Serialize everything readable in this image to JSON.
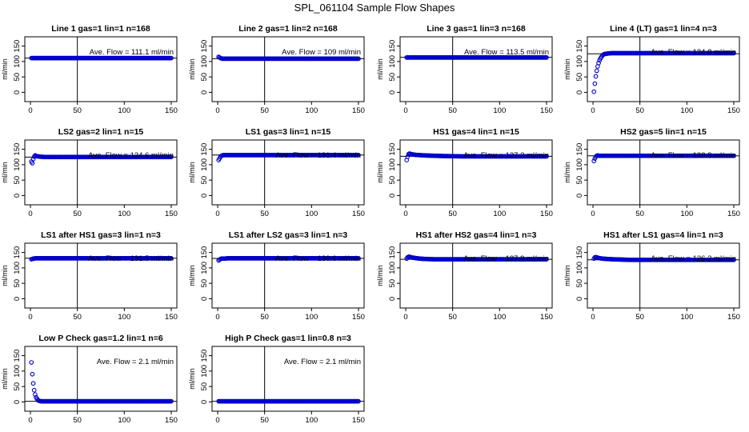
{
  "figure_title": "SPL_061104  Sample Flow Shapes",
  "colors": {
    "points": "#0000cc",
    "axes": "#000000",
    "background": "#ffffff"
  },
  "chart_data": [
    {
      "type": "scatter",
      "title": "Line 1 gas=1 lin=1 n=168",
      "ylabel": "ml/min",
      "annotation": "Ave. Flow = 111.1  ml/min",
      "ave_flow": 111.1,
      "xlim": [
        0,
        150
      ],
      "ylim": [
        0,
        150
      ],
      "xticks": [
        "0",
        "50",
        "100",
        "150"
      ],
      "yticks": [
        "0",
        "50",
        "100",
        "150"
      ],
      "vline_x": 50,
      "hline_y": 111.1,
      "x": [
        1,
        2,
        3,
        4,
        5,
        6,
        8,
        10,
        15,
        20,
        30,
        40,
        60,
        80,
        100,
        120,
        140,
        150
      ],
      "y": [
        111,
        111,
        111,
        111,
        111,
        111,
        111,
        111,
        111,
        111,
        111,
        111,
        111,
        111,
        111,
        111,
        111,
        111
      ]
    },
    {
      "type": "scatter",
      "title": "Line 2 gas=1 lin=2 n=168",
      "ylabel": "ml/min",
      "annotation": "Ave. Flow = 109  ml/min",
      "ave_flow": 109,
      "xlim": [
        0,
        150
      ],
      "ylim": [
        0,
        150
      ],
      "xticks": [
        "0",
        "50",
        "100",
        "150"
      ],
      "yticks": [
        "0",
        "50",
        "100",
        "150"
      ],
      "vline_x": 50,
      "hline_y": 109,
      "x": [
        1,
        2,
        3,
        4,
        5,
        6,
        8,
        10,
        15,
        20,
        30,
        40,
        60,
        80,
        100,
        120,
        140,
        150
      ],
      "y": [
        115,
        113,
        111,
        110,
        109,
        109,
        109,
        109,
        109,
        109,
        109,
        109,
        109,
        109,
        109,
        109,
        109,
        109
      ]
    },
    {
      "type": "scatter",
      "title": "Line 3 gas=1 lin=3 n=168",
      "ylabel": "ml/min",
      "annotation": "Ave. Flow = 113.5  ml/min",
      "ave_flow": 113.5,
      "xlim": [
        0,
        150
      ],
      "ylim": [
        0,
        150
      ],
      "xticks": [
        "0",
        "50",
        "100",
        "150"
      ],
      "yticks": [
        "0",
        "50",
        "100",
        "150"
      ],
      "vline_x": 50,
      "hline_y": 113.5,
      "x": [
        1,
        2,
        3,
        4,
        5,
        6,
        8,
        10,
        15,
        20,
        30,
        40,
        60,
        80,
        100,
        120,
        140,
        150
      ],
      "y": [
        113,
        113,
        113,
        113,
        113,
        113,
        113,
        113,
        113,
        113,
        113,
        113,
        113,
        113,
        113,
        113,
        113,
        113
      ]
    },
    {
      "type": "scatter",
      "title": "Line 4 (LT) gas=1 lin=4 n=3",
      "ylabel": "ml/min",
      "annotation": "Ave. Flow = 124.8  ml/min",
      "ave_flow": 124.8,
      "xlim": [
        0,
        150
      ],
      "ylim": [
        0,
        150
      ],
      "xticks": [
        "0",
        "50",
        "100",
        "150"
      ],
      "yticks": [
        "0",
        "50",
        "100",
        "150"
      ],
      "vline_x": 50,
      "hline_y": 124.8,
      "x": [
        1,
        2,
        3,
        4,
        5,
        6,
        7,
        8,
        9,
        10,
        11,
        12,
        14,
        16,
        20,
        30,
        40,
        60,
        80,
        100,
        120,
        140,
        150
      ],
      "y": [
        2,
        28,
        52,
        70,
        84,
        95,
        104,
        110,
        115,
        119,
        122,
        124,
        125,
        126,
        127,
        127,
        127,
        127,
        127,
        127,
        127,
        127,
        127
      ]
    },
    {
      "type": "scatter",
      "title": "LS2 gas=2 lin=1 n=15",
      "ylabel": "ml/min",
      "annotation": "Ave. Flow = 124.6  ml/min",
      "ave_flow": 124.6,
      "xlim": [
        0,
        150
      ],
      "ylim": [
        0,
        150
      ],
      "xticks": [
        "0",
        "50",
        "100",
        "150"
      ],
      "yticks": [
        "0",
        "50",
        "100",
        "150"
      ],
      "vline_x": 50,
      "hline_y": 124.6,
      "x": [
        1,
        2,
        3,
        4,
        5,
        6,
        8,
        10,
        15,
        20,
        30,
        40,
        60,
        80,
        100,
        120,
        140,
        150
      ],
      "y": [
        110,
        105,
        118,
        126,
        130,
        128,
        127,
        126,
        125,
        125,
        125,
        125,
        125,
        125,
        125,
        125,
        125,
        125
      ]
    },
    {
      "type": "scatter",
      "title": "LS1 gas=3 lin=1 n=15",
      "ylabel": "ml/min",
      "annotation": "Ave. Flow = 131.4  ml/min",
      "ave_flow": 131.4,
      "xlim": [
        0,
        150
      ],
      "ylim": [
        0,
        150
      ],
      "xticks": [
        "0",
        "50",
        "100",
        "150"
      ],
      "yticks": [
        "0",
        "50",
        "100",
        "150"
      ],
      "vline_x": 50,
      "hline_y": 131.4,
      "x": [
        1,
        2,
        3,
        4,
        5,
        6,
        8,
        10,
        15,
        20,
        30,
        40,
        60,
        80,
        100,
        120,
        140,
        150
      ],
      "y": [
        115,
        120,
        126,
        129,
        130,
        131,
        131,
        131,
        131,
        131,
        131,
        131,
        131,
        131,
        131,
        131,
        131,
        131
      ]
    },
    {
      "type": "scatter",
      "title": "HS1 gas=4 lin=1 n=15",
      "ylabel": "ml/min",
      "annotation": "Ave. Flow = 127.3  ml/min",
      "ave_flow": 127.3,
      "xlim": [
        0,
        150
      ],
      "ylim": [
        0,
        150
      ],
      "xticks": [
        "0",
        "50",
        "100",
        "150"
      ],
      "yticks": [
        "0",
        "50",
        "100",
        "150"
      ],
      "vline_x": 50,
      "hline_y": 127.3,
      "x": [
        1,
        2,
        3,
        4,
        5,
        6,
        8,
        10,
        15,
        20,
        30,
        40,
        60,
        80,
        100,
        120,
        140,
        150
      ],
      "y": [
        115,
        126,
        134,
        136,
        135,
        134,
        133,
        132,
        131,
        130,
        129,
        128,
        127,
        127,
        127,
        127,
        127,
        127
      ]
    },
    {
      "type": "scatter",
      "title": "HS2 gas=5 lin=1 n=15",
      "ylabel": "ml/min",
      "annotation": "Ave. Flow = 128.8  ml/min",
      "ave_flow": 128.8,
      "xlim": [
        0,
        150
      ],
      "ylim": [
        0,
        150
      ],
      "xticks": [
        "0",
        "50",
        "100",
        "150"
      ],
      "yticks": [
        "0",
        "50",
        "100",
        "150"
      ],
      "vline_x": 50,
      "hline_y": 128.8,
      "x": [
        1,
        2,
        3,
        4,
        5,
        6,
        8,
        10,
        15,
        20,
        30,
        40,
        60,
        80,
        100,
        120,
        140,
        150
      ],
      "y": [
        112,
        120,
        126,
        129,
        130,
        129,
        129,
        129,
        129,
        129,
        129,
        129,
        129,
        129,
        129,
        129,
        129,
        129
      ]
    },
    {
      "type": "scatter",
      "title": "LS1 after HS1 gas=3 lin=1 n=3",
      "ylabel": "ml/min",
      "annotation": "Ave. Flow = 131.5  ml/min",
      "ave_flow": 131.5,
      "xlim": [
        0,
        150
      ],
      "ylim": [
        0,
        150
      ],
      "xticks": [
        "0",
        "50",
        "100",
        "150"
      ],
      "yticks": [
        "0",
        "50",
        "100",
        "150"
      ],
      "vline_x": 50,
      "hline_y": 131.5,
      "x": [
        1,
        2,
        3,
        4,
        5,
        6,
        8,
        10,
        15,
        20,
        30,
        40,
        60,
        80,
        100,
        120,
        140,
        150
      ],
      "y": [
        128,
        129,
        130,
        130,
        131,
        131,
        131,
        131,
        131,
        131,
        131,
        131,
        131,
        131,
        131,
        131,
        131,
        131
      ]
    },
    {
      "type": "scatter",
      "title": "LS1 after LS2 gas=3 lin=1 n=3",
      "ylabel": "ml/min",
      "annotation": "Ave. Flow = 130.6  ml/min",
      "ave_flow": 130.6,
      "xlim": [
        0,
        150
      ],
      "ylim": [
        0,
        150
      ],
      "xticks": [
        "0",
        "50",
        "100",
        "150"
      ],
      "yticks": [
        "0",
        "50",
        "100",
        "150"
      ],
      "vline_x": 50,
      "hline_y": 130.6,
      "x": [
        1,
        2,
        3,
        4,
        5,
        6,
        8,
        10,
        15,
        20,
        30,
        40,
        60,
        80,
        100,
        120,
        140,
        150
      ],
      "y": [
        124,
        127,
        129,
        130,
        130,
        130,
        130,
        131,
        131,
        131,
        131,
        131,
        131,
        131,
        131,
        131,
        131,
        131
      ]
    },
    {
      "type": "scatter",
      "title": "HS1 after HS2 gas=4 lin=1 n=3",
      "ylabel": "ml/min",
      "annotation": "Ave. Flow = 127.9  ml/min",
      "ave_flow": 127.9,
      "xlim": [
        0,
        150
      ],
      "ylim": [
        0,
        150
      ],
      "xticks": [
        "0",
        "50",
        "100",
        "150"
      ],
      "yticks": [
        "0",
        "50",
        "100",
        "150"
      ],
      "vline_x": 50,
      "hline_y": 127.9,
      "x": [
        1,
        2,
        3,
        4,
        5,
        6,
        8,
        10,
        15,
        20,
        30,
        40,
        60,
        80,
        100,
        120,
        140,
        150
      ],
      "y": [
        130,
        134,
        136,
        136,
        135,
        134,
        133,
        132,
        130,
        129,
        128,
        128,
        128,
        128,
        128,
        128,
        128,
        128
      ]
    },
    {
      "type": "scatter",
      "title": "HS1 after LS1 gas=4 lin=1 n=3",
      "ylabel": "ml/min",
      "annotation": "Ave. Flow = 126.2  ml/min",
      "ave_flow": 126.2,
      "xlim": [
        0,
        150
      ],
      "ylim": [
        0,
        150
      ],
      "xticks": [
        "0",
        "50",
        "100",
        "150"
      ],
      "yticks": [
        "0",
        "50",
        "100",
        "150"
      ],
      "vline_x": 50,
      "hline_y": 126.2,
      "x": [
        1,
        2,
        3,
        4,
        5,
        6,
        8,
        10,
        15,
        20,
        30,
        40,
        60,
        80,
        100,
        120,
        140,
        150
      ],
      "y": [
        130,
        134,
        135,
        134,
        133,
        132,
        131,
        130,
        129,
        128,
        127,
        126,
        126,
        126,
        126,
        126,
        126,
        126
      ]
    },
    {
      "type": "scatter",
      "title": "Low P Check gas=1.2 lin=1 n=6",
      "ylabel": "ml/min",
      "annotation": "Ave. Flow =  2.1  ml/min",
      "ave_flow": 2.1,
      "xlim": [
        0,
        150
      ],
      "ylim": [
        0,
        150
      ],
      "xticks": [
        "0",
        "50",
        "100",
        "150"
      ],
      "yticks": [
        "0",
        "50",
        "100",
        "150"
      ],
      "vline_x": 50,
      "hline_y": 2.1,
      "x": [
        1,
        2,
        3,
        4,
        5,
        6,
        7,
        8,
        9,
        10,
        12,
        14,
        16,
        20,
        30,
        40,
        60,
        80,
        100,
        120,
        140,
        150
      ],
      "y": [
        128,
        90,
        60,
        38,
        24,
        15,
        10,
        6,
        4,
        3,
        2,
        2,
        2,
        2,
        2,
        2,
        2,
        2,
        2,
        2,
        2,
        2
      ]
    },
    {
      "type": "scatter",
      "title": "High P Check gas=1 lin=0.8 n=3",
      "ylabel": "ml/min",
      "annotation": "Ave. Flow =  2.1  ml/min",
      "ave_flow": 2.1,
      "xlim": [
        0,
        150
      ],
      "ylim": [
        0,
        150
      ],
      "xticks": [
        "0",
        "50",
        "100",
        "150"
      ],
      "yticks": [
        "0",
        "50",
        "100",
        "150"
      ],
      "vline_x": 50,
      "hline_y": 2.1,
      "x": [
        1,
        2,
        3,
        4,
        5,
        6,
        8,
        10,
        15,
        20,
        30,
        40,
        60,
        80,
        100,
        120,
        140,
        150
      ],
      "y": [
        2,
        2,
        2,
        2,
        2,
        2,
        2,
        2,
        2,
        2,
        2,
        2,
        2,
        2,
        2,
        2,
        2,
        2
      ]
    }
  ]
}
